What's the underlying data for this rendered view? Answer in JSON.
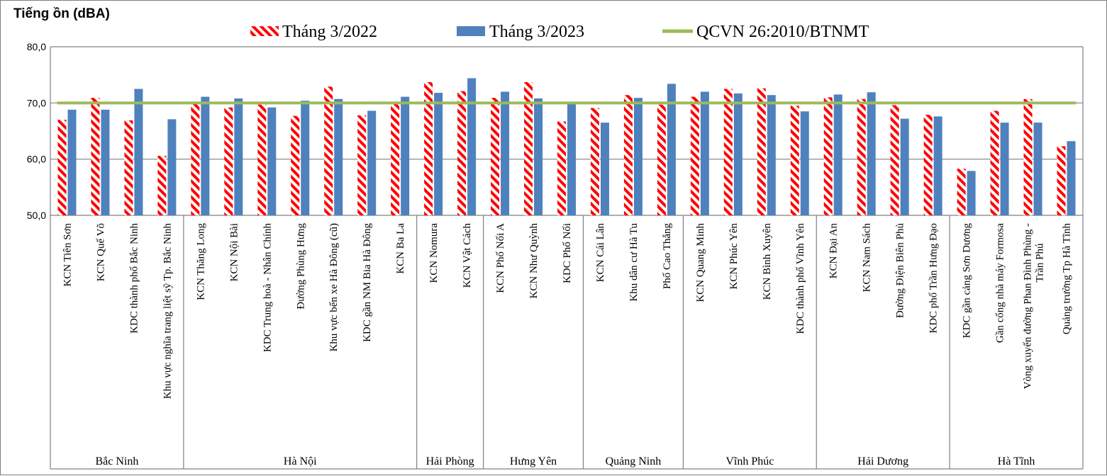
{
  "chart_data": {
    "type": "bar",
    "ylabel": "Tiếng ồn (dBA)",
    "ylim": [
      50,
      80
    ],
    "yticks": [
      "80,0",
      "70,0",
      "60,0",
      "50,0"
    ],
    "grid": "horizontal",
    "legend_position": "top",
    "series": [
      {
        "name": "Tháng 3/2022",
        "style": "red-white-diagonal-stripes",
        "color": "#ff0000",
        "values": [
          67.0,
          70.9,
          66.9,
          60.6,
          70.0,
          69.2,
          69.7,
          67.7,
          72.9,
          67.8,
          70.0,
          73.7,
          72.1,
          70.9,
          73.7,
          66.7,
          69.1,
          71.4,
          69.7,
          71.1,
          72.5,
          72.6,
          69.5,
          71.0,
          70.7,
          69.6,
          67.9,
          58.3,
          68.6,
          70.7,
          62.3
        ]
      },
      {
        "name": "Tháng 3/2023",
        "color": "#4f81bd",
        "values": [
          68.8,
          68.8,
          72.5,
          67.1,
          71.1,
          70.8,
          69.2,
          70.4,
          70.7,
          68.6,
          71.1,
          71.8,
          74.4,
          72.0,
          70.8,
          70.0,
          66.5,
          70.9,
          73.4,
          72.0,
          71.7,
          71.4,
          68.5,
          71.5,
          71.9,
          67.2,
          67.6,
          57.9,
          66.5,
          66.5,
          63.2
        ]
      },
      {
        "name": "QCVN 26:2010/BTNMT",
        "type": "line",
        "color": "#9bbb59",
        "value": 70
      }
    ],
    "categories": [
      "KCN Tiên Sơn",
      "KCN Quế Võ",
      "KDC thành phố Bắc Ninh",
      "Khu vực nghĩa trang liệt sỹ Tp. Bắc Ninh",
      "KCN Thăng Long",
      "KCN Nội Bài",
      "KDC Trung hoà - Nhân Chính",
      "Đường Phùng Hưng",
      "Khu vực bến xe Hà Đông (cũ)",
      "KDC gần NM Bia Hà Đông",
      "KCN Ba La",
      "KCN Nomura",
      "KCN Vật Cách",
      "KCN Phố Nối A",
      "KCN Như Quỳnh",
      "KDC Phố Nối",
      "KCN Cái Lân",
      "Khu dân cư  Hà Tu",
      "Phố Cao Thắng",
      "KCN Quang Minh",
      "KCN Phúc Yên",
      "KCN Bình Xuyên",
      "KDC thành phố Vĩnh Yên",
      "KCN Đại An",
      "KCN Nam Sách",
      "Đường Điện Biên Phủ",
      "KDC phố Trần Hưng Đạo",
      "KDC gần cảng Sơn Dương",
      "Gần cổng nhà máy Formosa",
      "Vòng xuyến đường Phan Đình Phùng - Trần Phú",
      "Quảng trường Tp Hà Tĩnh"
    ],
    "groups": [
      {
        "label": "Bắc Ninh",
        "start": 0,
        "count": 4
      },
      {
        "label": "Hà Nội",
        "start": 4,
        "count": 7
      },
      {
        "label": "Hải Phòng",
        "start": 11,
        "count": 2
      },
      {
        "label": "Hưng Yên",
        "start": 13,
        "count": 3
      },
      {
        "label": "Quảng Ninh",
        "start": 16,
        "count": 3
      },
      {
        "label": "Vĩnh Phúc",
        "start": 19,
        "count": 4
      },
      {
        "label": "Hải Dương",
        "start": 23,
        "count": 4
      },
      {
        "label": "Hà Tĩnh",
        "start": 27,
        "count": 4
      }
    ]
  }
}
